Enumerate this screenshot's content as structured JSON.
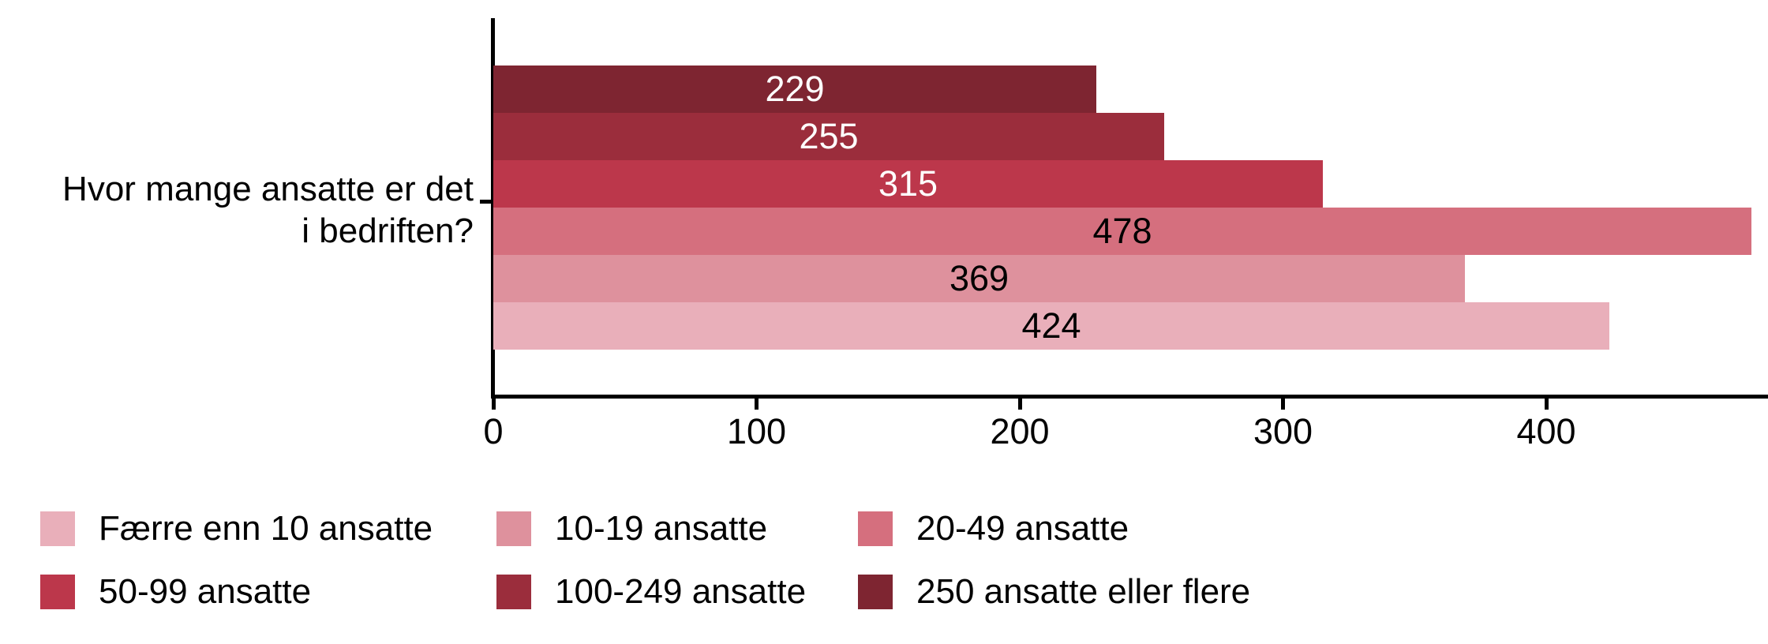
{
  "chart_data": {
    "type": "bar",
    "orientation": "horizontal",
    "title": "",
    "question_label_lines": [
      "Hvor mange ansatte er det",
      "i bedriften?"
    ],
    "bars": [
      {
        "label": "250 ansatte eller flere",
        "value": 229,
        "color": "#7E2531",
        "value_text_color": "#FFFFFF"
      },
      {
        "label": "100-249 ansatte",
        "value": 255,
        "color": "#9B2D3C",
        "value_text_color": "#FFFFFF"
      },
      {
        "label": "50-99 ansatte",
        "value": 315,
        "color": "#BC374B",
        "value_text_color": "#FFFFFF"
      },
      {
        "label": "20-49 ansatte",
        "value": 478,
        "color": "#D56F7E",
        "value_text_color": "#000000"
      },
      {
        "label": "10-19 ansatte",
        "value": 369,
        "color": "#DE919D",
        "value_text_color": "#000000"
      },
      {
        "label": "Færre enn 10 ansatte",
        "value": 424,
        "color": "#E9AFBA",
        "value_text_color": "#000000"
      }
    ],
    "x_axis": {
      "ticks": [
        0,
        100,
        200,
        300,
        400
      ],
      "xlim": [
        0,
        483
      ],
      "grid": false
    },
    "legend_position": "bottom",
    "legend": [
      {
        "label": "Færre enn 10 ansatte",
        "color": "#E9AFBA"
      },
      {
        "label": "10-19 ansatte",
        "color": "#DE919D"
      },
      {
        "label": "20-49 ansatte",
        "color": "#D56F7E"
      },
      {
        "label": "50-99 ansatte",
        "color": "#BC374B"
      },
      {
        "label": "100-249 ansatte",
        "color": "#9B2D3C"
      },
      {
        "label": "250 ansatte eller flere",
        "color": "#7E2531"
      }
    ],
    "axis_color": "#000000"
  }
}
